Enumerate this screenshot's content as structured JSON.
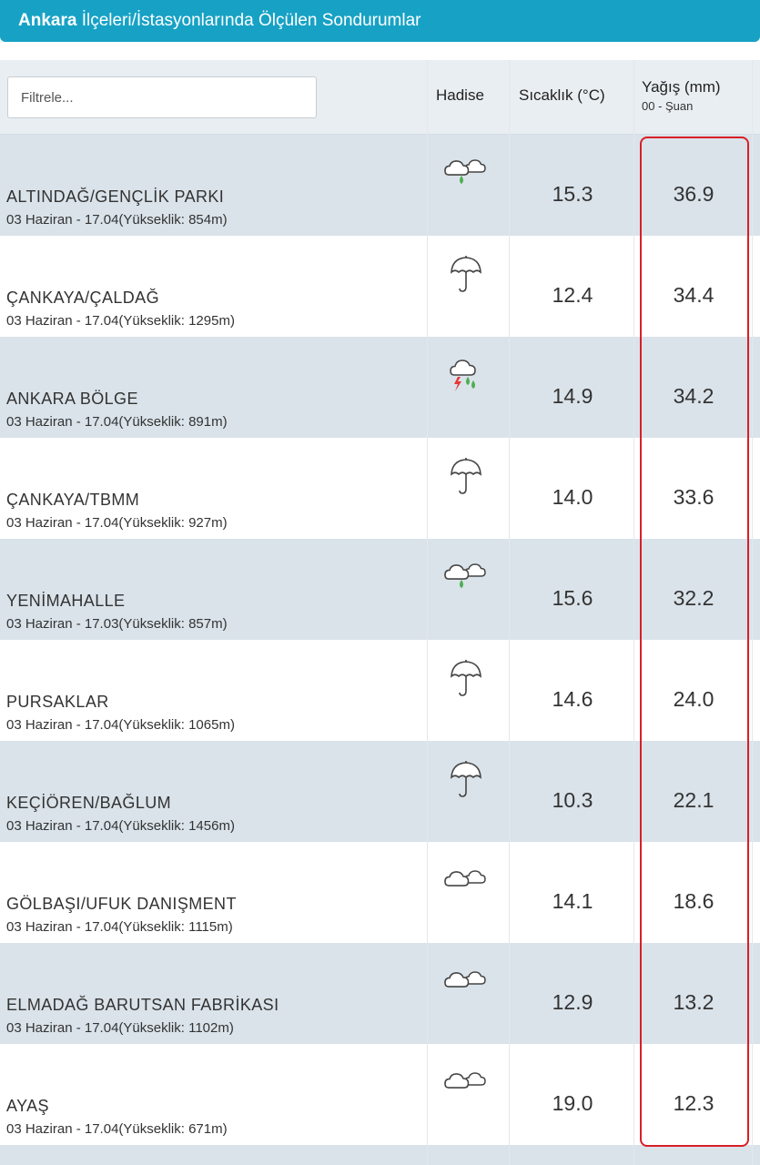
{
  "header": {
    "city": "Ankara",
    "title_rest": " İlçeleri/İstasyonlarında Ölçülen Sondurumlar"
  },
  "filter": {
    "placeholder": "Filtrele..."
  },
  "columns": {
    "hadise": "Hadise",
    "sicaklik": "Sıcaklık (°C)",
    "yagis": "Yağış (mm)",
    "yagis_sub": "00 - Şuan"
  },
  "colors": {
    "title_bar": "#17a2c5",
    "row_shade": "#dae3ea",
    "header_bg": "#e9eef2",
    "highlight": "#d91f26",
    "rain_drop": "#4caf50",
    "lightning": "#e53935"
  },
  "stations": [
    {
      "name": "ALTINDAĞ/GENÇLİK PARKI",
      "meta": "03 Haziran - 17.04(Yükseklik: 854m)",
      "icon": "cloud-light-rain-icon",
      "temp": "15.3",
      "rain": "36.9"
    },
    {
      "name": "ÇANKAYA/ÇALDAĞ",
      "meta": "03 Haziran - 17.04(Yükseklik: 1295m)",
      "icon": "umbrella-icon",
      "temp": "12.4",
      "rain": "34.4"
    },
    {
      "name": "ANKARA BÖLGE",
      "meta": "03 Haziran - 17.04(Yükseklik: 891m)",
      "icon": "thunderstorm-rain-icon",
      "temp": "14.9",
      "rain": "34.2"
    },
    {
      "name": "ÇANKAYA/TBMM",
      "meta": "03 Haziran - 17.04(Yükseklik: 927m)",
      "icon": "umbrella-icon",
      "temp": "14.0",
      "rain": "33.6"
    },
    {
      "name": "YENİMAHALLE",
      "meta": "03 Haziran - 17.03(Yükseklik: 857m)",
      "icon": "cloud-light-rain-icon",
      "temp": "15.6",
      "rain": "32.2"
    },
    {
      "name": "PURSAKLAR",
      "meta": "03 Haziran - 17.04(Yükseklik: 1065m)",
      "icon": "umbrella-icon",
      "temp": "14.6",
      "rain": "24.0"
    },
    {
      "name": "KEÇİÖREN/BAĞLUM",
      "meta": "03 Haziran - 17.04(Yükseklik: 1456m)",
      "icon": "umbrella-icon",
      "temp": "10.3",
      "rain": "22.1"
    },
    {
      "name": "GÖLBAŞI/UFUK DANIŞMENT",
      "meta": "03 Haziran - 17.04(Yükseklik: 1115m)",
      "icon": "cloudy-icon",
      "temp": "14.1",
      "rain": "18.6"
    },
    {
      "name": "ELMADAĞ BARUTSAN FABRİKASI",
      "meta": "03 Haziran - 17.04(Yükseklik: 1102m)",
      "icon": "cloudy-icon",
      "temp": "12.9",
      "rain": "13.2"
    },
    {
      "name": "AYAŞ",
      "meta": "03 Haziran - 17.04(Yükseklik: 671m)",
      "icon": "cloudy-icon",
      "temp": "19.0",
      "rain": "12.3"
    }
  ]
}
